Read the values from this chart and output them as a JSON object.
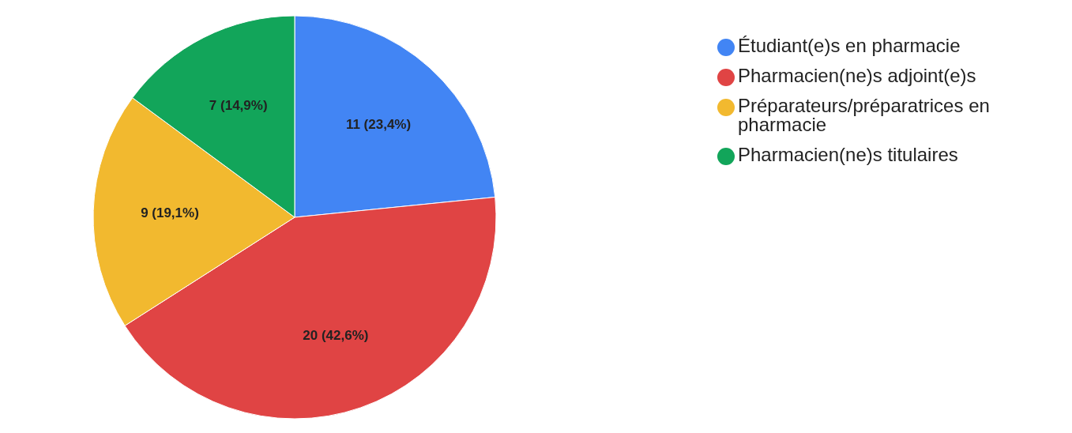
{
  "chart_data": {
    "type": "pie",
    "categories": [
      "Étudiant(e)s en pharmacie",
      "Pharmacien(ne)s adjoint(e)s",
      "Préparateurs/préparatrices en pharmacie",
      "Pharmacien(ne)s titulaires"
    ],
    "values": [
      11,
      20,
      9,
      7
    ],
    "value_labels": [
      "11 (23,4%)",
      "20 (42,6%)",
      "9 (19,1%)",
      "7 (14,9%)"
    ],
    "colors": [
      "#4285f4",
      "#e04444",
      "#f2b92f",
      "#12a55a"
    ],
    "legend": "top right"
  }
}
